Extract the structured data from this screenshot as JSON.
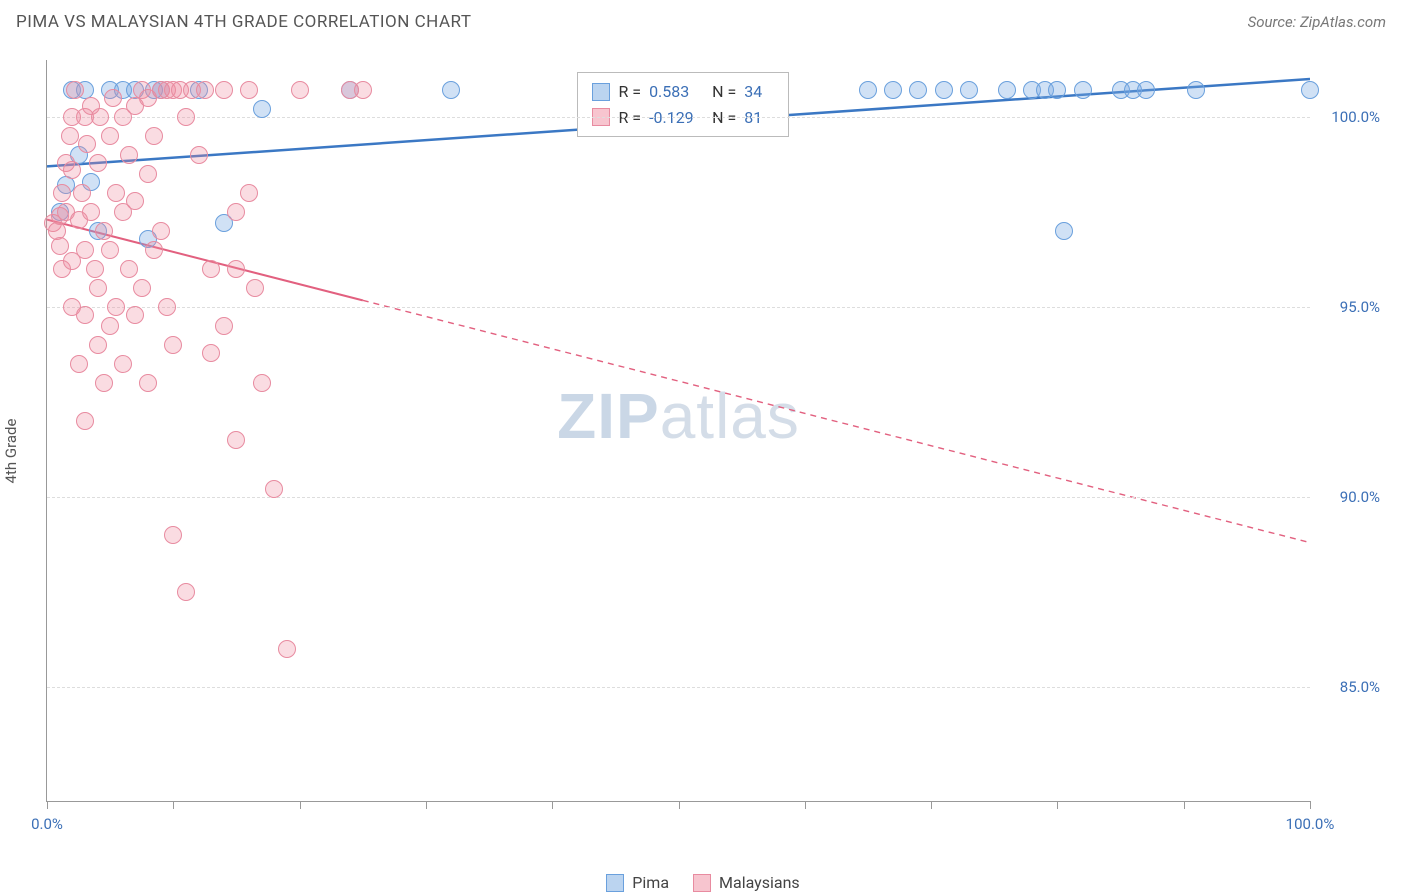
{
  "title": "PIMA VS MALAYSIAN 4TH GRADE CORRELATION CHART",
  "source": "Source: ZipAtlas.com",
  "y_axis_label": "4th Grade",
  "watermark_bold": "ZIP",
  "watermark_rest": "atlas",
  "chart": {
    "type": "scatter",
    "xlim": [
      0,
      100
    ],
    "ylim": [
      82,
      101.5
    ],
    "x_ticks": [
      0,
      10,
      20,
      30,
      40,
      50,
      60,
      70,
      80,
      90,
      100
    ],
    "x_tick_labels": {
      "0": "0.0%",
      "100": "100.0%"
    },
    "y_ticks": [
      85,
      90,
      95,
      100
    ],
    "y_tick_labels": {
      "85": "85.0%",
      "90": "90.0%",
      "95": "95.0%",
      "100": "100.0%"
    },
    "background_color": "#ffffff",
    "grid_color": "#dddddd",
    "grid_dash": "4 4",
    "series": [
      {
        "name": "Pima",
        "color_fill": "rgba(120,170,225,0.35)",
        "color_stroke": "#6aa0dd",
        "marker_radius": 9,
        "r": "0.583",
        "n": "34",
        "trend": {
          "x1": 0,
          "y1": 98.7,
          "x2": 100,
          "y2": 101,
          "solid_until_x": 100,
          "stroke": "#3b78c4",
          "width": 2.5
        },
        "points": [
          [
            1,
            97.5
          ],
          [
            1.5,
            98.2
          ],
          [
            2,
            100.7
          ],
          [
            2.5,
            99.0
          ],
          [
            3,
            100.7
          ],
          [
            3.5,
            98.3
          ],
          [
            4,
            97.0
          ],
          [
            5,
            100.7
          ],
          [
            6,
            100.7
          ],
          [
            7,
            100.7
          ],
          [
            8,
            96.8
          ],
          [
            8.5,
            100.7
          ],
          [
            9,
            100.7
          ],
          [
            12,
            100.7
          ],
          [
            14,
            97.2
          ],
          [
            17,
            100.2
          ],
          [
            24,
            100.7
          ],
          [
            32,
            100.7
          ],
          [
            65,
            100.7
          ],
          [
            67,
            100.7
          ],
          [
            69,
            100.7
          ],
          [
            71,
            100.7
          ],
          [
            73,
            100.7
          ],
          [
            76,
            100.7
          ],
          [
            78,
            100.7
          ],
          [
            79,
            100.7
          ],
          [
            80,
            100.7
          ],
          [
            80.5,
            97.0
          ],
          [
            82,
            100.7
          ],
          [
            85,
            100.7
          ],
          [
            86,
            100.7
          ],
          [
            87,
            100.7
          ],
          [
            91,
            100.7
          ],
          [
            100,
            100.7
          ]
        ]
      },
      {
        "name": "Malaysians",
        "color_fill": "rgba(240,140,160,0.30)",
        "color_stroke": "#e88ba0",
        "marker_radius": 9,
        "r": "-0.129",
        "n": "81",
        "trend": {
          "x1": 0,
          "y1": 97.3,
          "x2": 100,
          "y2": 88.8,
          "solid_until_x": 25,
          "stroke": "#e2607f",
          "width": 2
        },
        "points": [
          [
            0.5,
            97.2
          ],
          [
            0.8,
            97.0
          ],
          [
            1,
            96.6
          ],
          [
            1,
            97.4
          ],
          [
            1.2,
            98.0
          ],
          [
            1.2,
            96.0
          ],
          [
            1.5,
            98.8
          ],
          [
            1.5,
            97.5
          ],
          [
            1.8,
            99.5
          ],
          [
            2,
            100.0
          ],
          [
            2,
            98.6
          ],
          [
            2,
            96.2
          ],
          [
            2,
            95.0
          ],
          [
            2.2,
            100.7
          ],
          [
            2.5,
            97.3
          ],
          [
            2.5,
            93.5
          ],
          [
            2.8,
            98.0
          ],
          [
            3,
            100.0
          ],
          [
            3,
            96.5
          ],
          [
            3,
            94.8
          ],
          [
            3,
            92.0
          ],
          [
            3.2,
            99.3
          ],
          [
            3.5,
            100.3
          ],
          [
            3.5,
            97.5
          ],
          [
            3.8,
            96.0
          ],
          [
            4,
            98.8
          ],
          [
            4,
            95.5
          ],
          [
            4,
            94.0
          ],
          [
            4.2,
            100.0
          ],
          [
            4.5,
            97.0
          ],
          [
            4.5,
            93.0
          ],
          [
            5,
            99.5
          ],
          [
            5,
            96.5
          ],
          [
            5,
            94.5
          ],
          [
            5.2,
            100.5
          ],
          [
            5.5,
            98.0
          ],
          [
            5.5,
            95.0
          ],
          [
            6,
            100.0
          ],
          [
            6,
            97.5
          ],
          [
            6,
            93.5
          ],
          [
            6.5,
            99.0
          ],
          [
            6.5,
            96.0
          ],
          [
            7,
            100.3
          ],
          [
            7,
            97.8
          ],
          [
            7,
            94.8
          ],
          [
            7.5,
            100.7
          ],
          [
            7.5,
            95.5
          ],
          [
            8,
            100.5
          ],
          [
            8,
            98.5
          ],
          [
            8,
            93.0
          ],
          [
            8.5,
            99.5
          ],
          [
            8.5,
            96.5
          ],
          [
            9,
            100.7
          ],
          [
            9,
            97.0
          ],
          [
            9.5,
            100.7
          ],
          [
            9.5,
            95.0
          ],
          [
            10,
            100.7
          ],
          [
            10,
            94.0
          ],
          [
            10,
            89.0
          ],
          [
            10.5,
            100.7
          ],
          [
            11,
            100.0
          ],
          [
            11,
            87.5
          ],
          [
            11.5,
            100.7
          ],
          [
            12,
            99.0
          ],
          [
            12.5,
            100.7
          ],
          [
            13,
            96.0
          ],
          [
            13,
            93.8
          ],
          [
            14,
            100.7
          ],
          [
            14,
            94.5
          ],
          [
            15,
            97.5
          ],
          [
            15,
            96.0
          ],
          [
            15,
            91.5
          ],
          [
            16,
            100.7
          ],
          [
            16,
            98.0
          ],
          [
            16.5,
            95.5
          ],
          [
            17,
            93.0
          ],
          [
            18,
            90.2
          ],
          [
            19,
            86.0
          ],
          [
            20,
            100.7
          ],
          [
            24,
            100.7
          ],
          [
            25,
            100.7
          ]
        ]
      }
    ]
  },
  "stats_labels": {
    "r_label": "R =",
    "n_label": "N ="
  },
  "legend": {
    "items": [
      "Pima",
      "Malaysians"
    ]
  }
}
